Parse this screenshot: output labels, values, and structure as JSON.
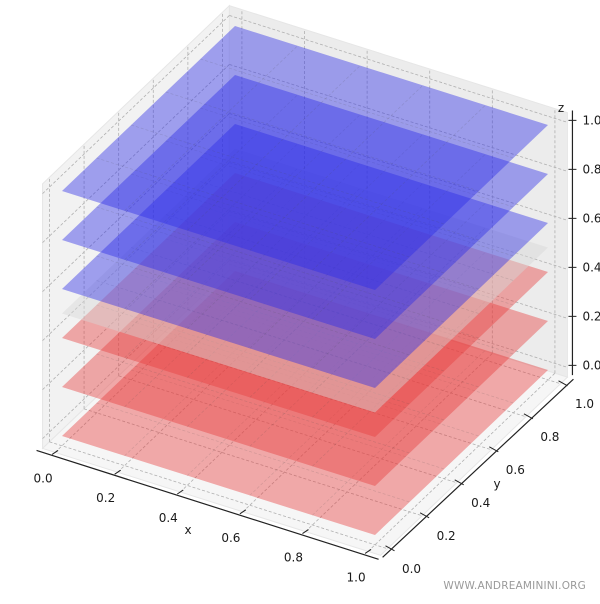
{
  "chart_data": {
    "type": "3d-surface",
    "title": "",
    "description": "Stack of horizontal planes z = c over the unit square, colored by a blue-white-red (bwr) colormap",
    "xlabel": "x",
    "ylabel": "y",
    "zlabel": "z",
    "xlim": [
      0.0,
      1.0
    ],
    "ylim": [
      0.0,
      1.0
    ],
    "zlim": [
      0.0,
      1.0
    ],
    "x_ticks": [
      "0.0",
      "0.2",
      "0.4",
      "0.6",
      "0.8",
      "1.0"
    ],
    "y_ticks": [
      "0.0",
      "0.2",
      "0.4",
      "0.6",
      "0.8",
      "1.0"
    ],
    "z_ticks": [
      "0.0",
      "0.2",
      "0.4",
      "0.6",
      "0.8",
      "1.0"
    ],
    "grid": true,
    "alpha": 0.3,
    "series": [
      {
        "name": "plane z=0.0",
        "z": 0.0,
        "color": "#e63c3c"
      },
      {
        "name": "plane z=0.2",
        "z": 0.2,
        "color": "#e63c3c"
      },
      {
        "name": "plane z=0.4",
        "z": 0.4,
        "color": "#e63c3c"
      },
      {
        "name": "plane z=0.5",
        "z": 0.5,
        "color": "#d8d8d8"
      },
      {
        "name": "plane z=0.6",
        "z": 0.6,
        "color": "#2a2ae6"
      },
      {
        "name": "plane z=0.8",
        "z": 0.8,
        "color": "#2a2ae6"
      },
      {
        "name": "plane z=1.0",
        "z": 1.0,
        "color": "#2a2ae6"
      }
    ]
  },
  "labels": {
    "x": "x",
    "y": "y",
    "z": "z"
  },
  "watermark": "WWW.ANDREAMININI.ORG"
}
